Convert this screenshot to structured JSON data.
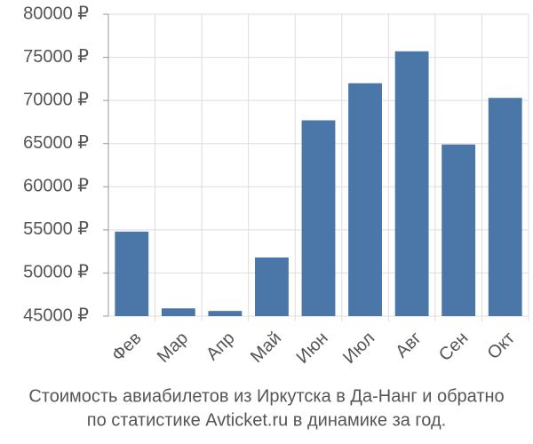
{
  "chart_data": {
    "type": "bar",
    "title": "Стоимость авиабилетов из Иркутска в Да-Нанг и обратно",
    "subtitle": "по статистике Avticket.ru в динамике за год.",
    "categories": [
      "Фев",
      "Мар",
      "Апр",
      "Май",
      "Июн",
      "Июл",
      "Авг",
      "Сен",
      "Окт"
    ],
    "values": [
      54800,
      45900,
      45600,
      51800,
      67700,
      72000,
      75700,
      64900,
      70300
    ],
    "color": "#4a76a8",
    "ylim": [
      45000,
      80000
    ],
    "yticks": [
      {
        "value": 45000,
        "label": "45000 ₽"
      },
      {
        "value": 50000,
        "label": "50000 ₽"
      },
      {
        "value": 55000,
        "label": "55000 ₽"
      },
      {
        "value": 60000,
        "label": "60000 ₽"
      },
      {
        "value": 65000,
        "label": "65000 ₽"
      },
      {
        "value": 70000,
        "label": "70000 ₽"
      },
      {
        "value": 75000,
        "label": "75000 ₽"
      },
      {
        "value": 80000,
        "label": "80000 ₽"
      }
    ],
    "grid": true
  }
}
